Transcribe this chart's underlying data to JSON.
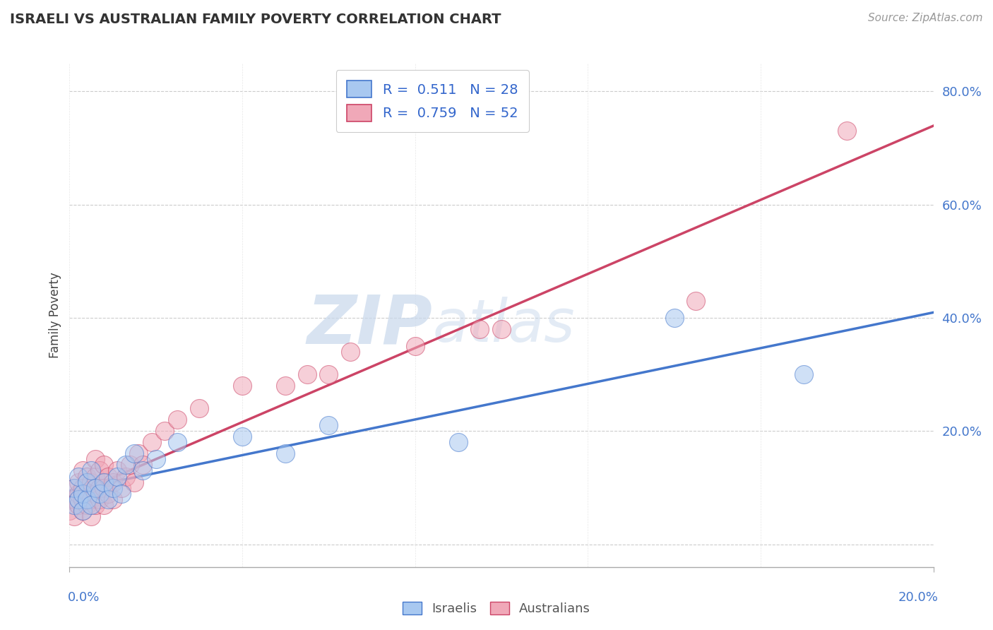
{
  "title": "ISRAELI VS AUSTRALIAN FAMILY POVERTY CORRELATION CHART",
  "source": "Source: ZipAtlas.com",
  "ylabel": "Family Poverty",
  "xlim": [
    0.0,
    0.2
  ],
  "ylim": [
    -0.04,
    0.85
  ],
  "israelis_R": 0.511,
  "israelis_N": 28,
  "australians_R": 0.759,
  "australians_N": 52,
  "israeli_color": "#a8c8f0",
  "australian_color": "#f0a8b8",
  "israeli_line_color": "#4477cc",
  "australian_line_color": "#cc4466",
  "watermark_zip": "ZIP",
  "watermark_atlas": "atlas",
  "israelis_x": [
    0.001,
    0.001,
    0.002,
    0.002,
    0.003,
    0.003,
    0.004,
    0.004,
    0.005,
    0.005,
    0.006,
    0.007,
    0.008,
    0.009,
    0.01,
    0.011,
    0.012,
    0.013,
    0.015,
    0.017,
    0.02,
    0.025,
    0.04,
    0.05,
    0.06,
    0.09,
    0.14,
    0.17
  ],
  "israelis_y": [
    0.07,
    0.1,
    0.08,
    0.12,
    0.06,
    0.09,
    0.08,
    0.11,
    0.07,
    0.13,
    0.1,
    0.09,
    0.11,
    0.08,
    0.1,
    0.12,
    0.09,
    0.14,
    0.16,
    0.13,
    0.15,
    0.18,
    0.19,
    0.16,
    0.21,
    0.18,
    0.4,
    0.3
  ],
  "australians_x": [
    0.0,
    0.001,
    0.001,
    0.001,
    0.002,
    0.002,
    0.002,
    0.003,
    0.003,
    0.003,
    0.003,
    0.004,
    0.004,
    0.004,
    0.005,
    0.005,
    0.005,
    0.006,
    0.006,
    0.006,
    0.006,
    0.007,
    0.007,
    0.007,
    0.008,
    0.008,
    0.008,
    0.009,
    0.009,
    0.01,
    0.01,
    0.011,
    0.012,
    0.013,
    0.014,
    0.015,
    0.016,
    0.017,
    0.019,
    0.022,
    0.025,
    0.03,
    0.04,
    0.05,
    0.055,
    0.06,
    0.065,
    0.08,
    0.095,
    0.1,
    0.145,
    0.18
  ],
  "australians_y": [
    0.06,
    0.05,
    0.08,
    0.1,
    0.07,
    0.09,
    0.11,
    0.06,
    0.08,
    0.1,
    0.13,
    0.07,
    0.09,
    0.12,
    0.05,
    0.08,
    0.11,
    0.07,
    0.09,
    0.12,
    0.15,
    0.08,
    0.1,
    0.13,
    0.07,
    0.1,
    0.14,
    0.09,
    0.12,
    0.08,
    0.11,
    0.13,
    0.1,
    0.12,
    0.14,
    0.11,
    0.16,
    0.14,
    0.18,
    0.2,
    0.22,
    0.24,
    0.28,
    0.28,
    0.3,
    0.3,
    0.34,
    0.35,
    0.38,
    0.38,
    0.43,
    0.73
  ]
}
